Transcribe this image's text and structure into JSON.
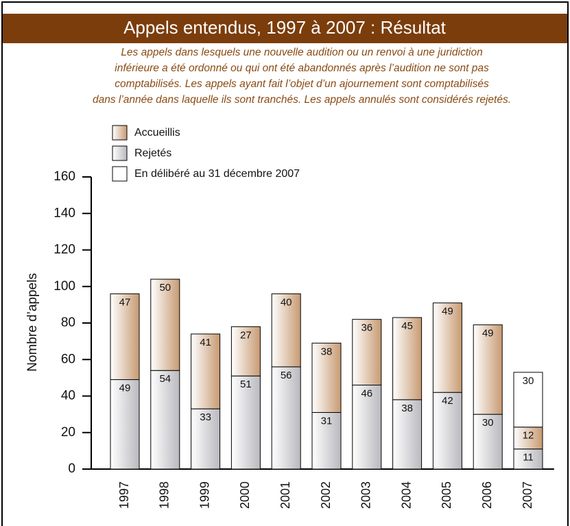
{
  "chart_data": {
    "type": "stacked_bar",
    "title": "Appels entendus, 1997 à 2007 : Résultat",
    "subtitle": [
      "Les appels dans lesquels une nouvelle audition ou un renvoi à une juridiction",
      "inférieure a été ordonné ou qui ont été abandonnés après l’audition ne sont pas",
      "comptabilisés. Les appels ayant fait l’objet d’un ajournement sont comptabilisés",
      "dans l’année dans laquelle ils sont tranchés. Les appels annulés sont considérés rejetés."
    ],
    "y_label": "Nombre d’appels",
    "categories": [
      "1997",
      "1998",
      "1999",
      "2000",
      "2001",
      "2002",
      "2003",
      "2004",
      "2005",
      "2006",
      "2007"
    ],
    "series": [
      {
        "name": "Accueillis",
        "color": "#c79a72",
        "values": [
          47,
          50,
          41,
          27,
          40,
          38,
          36,
          45,
          49,
          49,
          12
        ]
      },
      {
        "name": "Rejetés",
        "color": "#b9b9be",
        "values": [
          49,
          54,
          33,
          51,
          56,
          31,
          46,
          38,
          42,
          30,
          11
        ]
      },
      {
        "name": "En délibéré au 31 décembre 2007",
        "color": "#ffffff",
        "values": [
          null,
          null,
          null,
          null,
          null,
          null,
          null,
          null,
          null,
          null,
          30
        ]
      }
    ],
    "ylim": [
      0,
      160
    ],
    "yticks": [
      0,
      20,
      40,
      60,
      80,
      100,
      120,
      140,
      160
    ],
    "grid": false
  }
}
